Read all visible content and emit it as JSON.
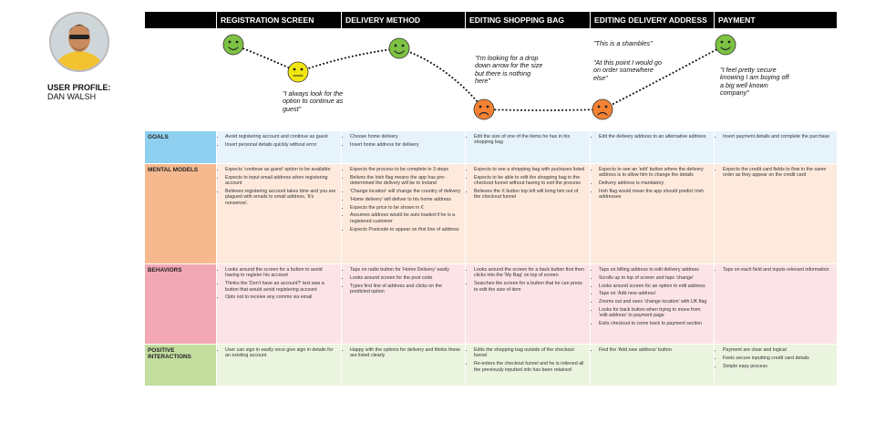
{
  "profile": {
    "label": "USER PROFILE:",
    "name": "DAN WALSH"
  },
  "stages": [
    "Registration Screen",
    "Delivery Method",
    "Editing Shopping Bag",
    "Editing Delivery Address",
    "Payment"
  ],
  "quotes": [
    "\"I always look for the option to continue as guest\"",
    "\"I'm looking for a drop down arrow for the size but there is nothing here\"",
    "\"This is a shambles\"",
    "\"At this point I would go on order somewhere else\"",
    "\"I feel pretty secure knowing I am buying off a big well known company\""
  ],
  "rows": [
    {
      "label": "Goals",
      "cells": [
        [
          "Avoid registering account and continue as guest",
          "Insert personal details quickly without error"
        ],
        [
          "Choose home delivery",
          "Insert home address for delivery"
        ],
        [
          "Edit the size of one of the items he has in his shopping bag"
        ],
        [
          "Edit the delivery address to an alternative address"
        ],
        [
          "Insert payment details and complete the purchase"
        ]
      ]
    },
    {
      "label": "Mental Models",
      "cells": [
        [
          "Expects 'continue as guest' option to be available",
          "Expects to input email address when registering account",
          "Believes registering account takes time and you are plagued with emails to  email address, 'it's nonsense'."
        ],
        [
          "Expects the process to be complete in 3 steps",
          "Belives the Irish flag means the app has pre-determined the delivery will be to Ireland",
          "'Change location' will change the country of delivery",
          "'Home delivery' will deliver to his home address",
          "Expects the price to be shown in €",
          "Assumes address would be auto loaded if he is a registered customer",
          "Expects Postcode to appear on first line of address"
        ],
        [
          "Expects to see a shopping bag with puchases listed",
          "Expects to be able to edit the shopping bag in the checkout funnel without having to exit the process",
          "Believes the X button top left will bring him out of the checkout funnel"
        ],
        [
          "Expects to see an 'edit' button where the delivery address is to allow him to change the details",
          "Delivery address is mandatory",
          "Irish flag would mean the app should predict Irish addresses"
        ],
        [
          "Expects the credit card fields to flow in the same order as they appear on the credit card"
        ]
      ]
    },
    {
      "label": "Behaviors",
      "cells": [
        [
          "Looks around the screen for a button to avoid having to register his account",
          "Thinks the 'Don't have an account?' text was a button that would avoid registering account",
          "Opts not to receive any comms via email"
        ],
        [
          "Taps on radio button for 'Home Delivery' easily",
          "Looks around screen for the post code",
          "Types first line of address and clicks on the predicted option"
        ],
        [
          "Looks around the screen for a back button first then clicks into the 'My Bag' on top of screen",
          "Searches the screen for a button that he can press to edit the size of item"
        ],
        [
          "Taps on billing address to edit delivery address",
          "Scrolls up to top of screen and taps 'change'",
          "Looks around screen for an option to edit address",
          "Taps on 'Add new address'",
          "Zooms out and sees 'change location' with UK flag",
          "Looks for back button when trying to move from 'edit address' to payment page",
          "Exits checkout to come back to payment section"
        ],
        [
          "Taps on each field and inputs relevant information"
        ]
      ]
    },
    {
      "label": "Positive Interactions",
      "cells": [
        [
          "User can sign in easily once give sign in details for an existing account"
        ],
        [
          "Happy with the options for delivery and thinks these are listed clearly"
        ],
        [
          "Edits the shopping bag outside of the checkout funnel",
          "Re-enters the checkout funnel and he is relieved all  the previously inputted info has been retained"
        ],
        [
          "Find the 'Add new address' button"
        ],
        [
          "Payment are clear and logical",
          "Feels secure inputting credit card details",
          "Simple easy process"
        ]
      ]
    }
  ]
}
